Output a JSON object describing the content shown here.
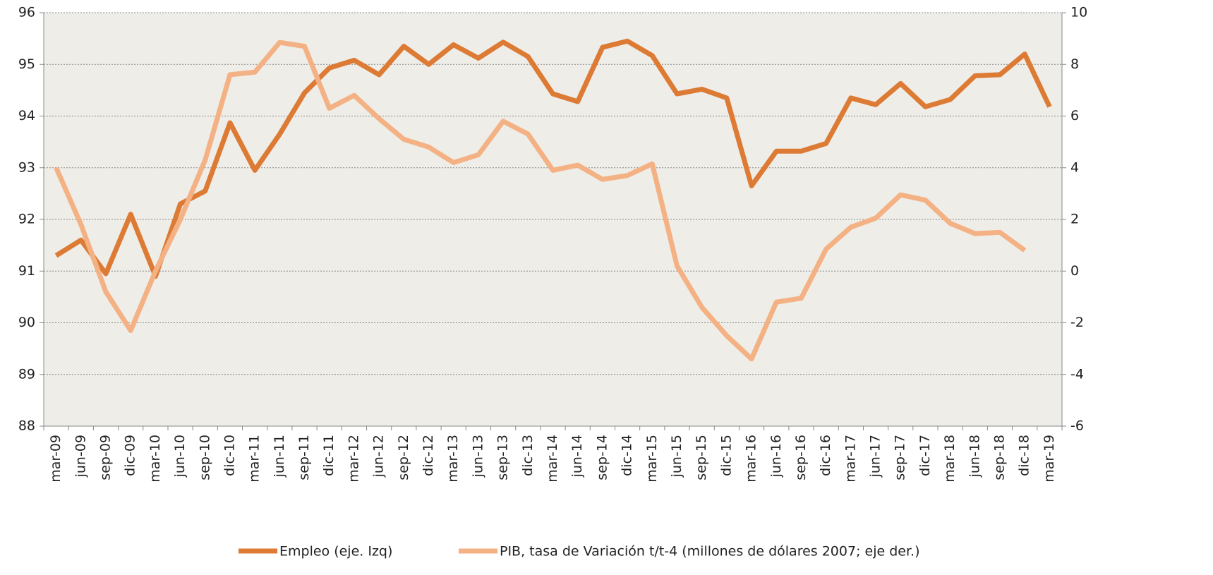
{
  "chart_data": {
    "type": "line",
    "categories": [
      "mar-09",
      "jun-09",
      "sep-09",
      "dic-09",
      "mar-10",
      "jun-10",
      "sep-10",
      "dic-10",
      "mar-11",
      "jun-11",
      "sep-11",
      "dic-11",
      "mar-12",
      "jun-12",
      "sep-12",
      "dic-12",
      "mar-13",
      "jun-13",
      "sep-13",
      "dic-13",
      "mar-14",
      "jun-14",
      "sep-14",
      "dic-14",
      "mar-15",
      "jun-15",
      "sep-15",
      "dic-15",
      "mar-16",
      "jun-16",
      "sep-16",
      "dic-16",
      "mar-17",
      "jun-17",
      "sep-17",
      "dic-17",
      "mar-18",
      "jun-18",
      "sep-18",
      "dic-18",
      "mar-19"
    ],
    "series": [
      {
        "name": "Empleo (eje. Izq)",
        "color": "#dd7a34",
        "values": [
          91.3,
          91.6,
          90.95,
          92.1,
          90.9,
          92.3,
          92.55,
          93.87,
          92.95,
          93.65,
          94.45,
          94.93,
          95.08,
          94.8,
          95.35,
          95.0,
          95.38,
          95.12,
          95.43,
          95.15,
          94.43,
          94.28,
          95.33,
          95.45,
          95.17,
          94.43,
          94.52,
          94.35,
          92.65,
          93.32,
          93.32,
          93.47,
          94.35,
          94.22,
          94.63,
          94.18,
          94.32,
          94.78,
          94.8,
          95.2,
          94.18
        ]
      },
      {
        "name": "PIB, tasa de Variación t/t-4 (millones de dólares 2007; eje der.)",
        "color": "#f4b183",
        "axis": "y2",
        "values": [
          4.0,
          1.8,
          -0.8,
          -2.3,
          0.0,
          2.0,
          4.3,
          7.6,
          7.7,
          8.85,
          8.7,
          6.3,
          6.8,
          5.9,
          5.1,
          4.8,
          4.2,
          4.5,
          5.8,
          5.3,
          3.9,
          4.1,
          3.55,
          3.7,
          4.15,
          0.2,
          -1.4,
          -2.5,
          -3.4,
          -1.2,
          -1.05,
          0.85,
          1.7,
          2.05,
          2.95,
          2.75,
          1.85,
          1.45,
          1.5,
          0.8,
          null
        ]
      }
    ],
    "ylim": [
      88,
      96
    ],
    "yticks": [
      88,
      89,
      90,
      91,
      92,
      93,
      94,
      95,
      96
    ],
    "y2lim": [
      -6,
      10
    ],
    "y2ticks": [
      -6,
      -4,
      -2,
      0,
      2,
      4,
      6,
      8,
      10
    ],
    "grid": true
  }
}
